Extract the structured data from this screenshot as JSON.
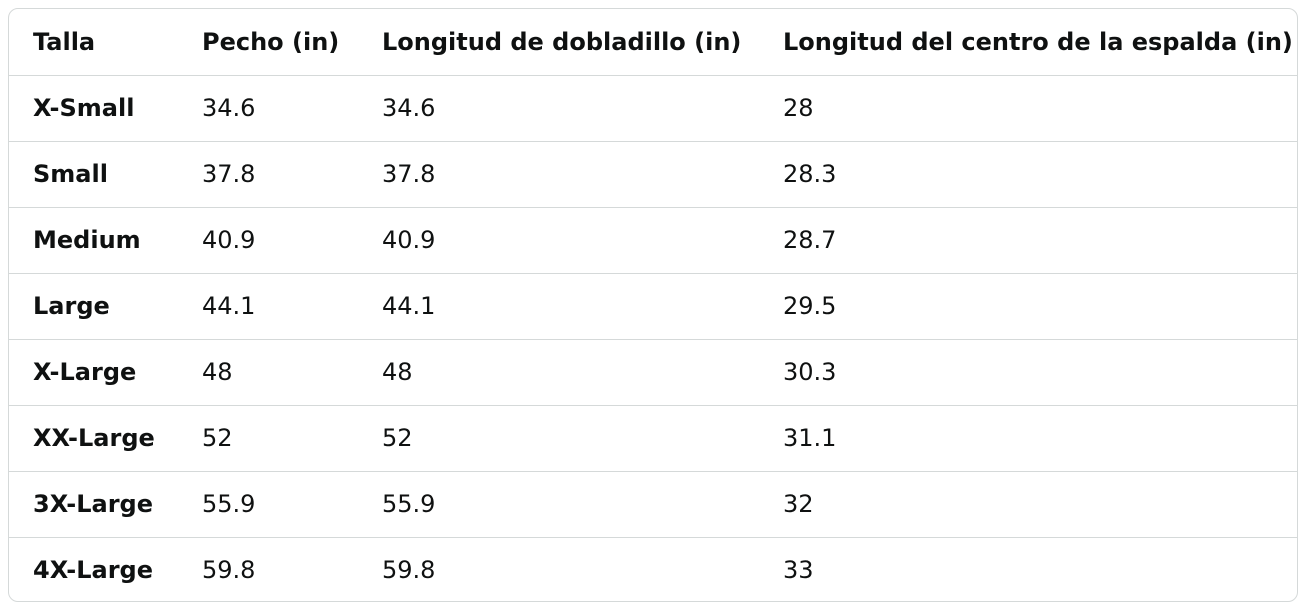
{
  "table": {
    "header": [
      "Talla",
      "Pecho (in)",
      "Longitud de dobladillo (in)",
      "Longitud del centro de la espalda (in)"
    ],
    "rows": [
      [
        "X-Small",
        "34.6",
        "34.6",
        "28"
      ],
      [
        "Small",
        "37.8",
        "37.8",
        "28.3"
      ],
      [
        "Medium",
        "40.9",
        "40.9",
        "28.7"
      ],
      [
        "Large",
        "44.1",
        "44.1",
        "29.5"
      ],
      [
        "X-Large",
        "48",
        "48",
        "30.3"
      ],
      [
        "XX-Large",
        "52",
        "52",
        "31.1"
      ],
      [
        "3X-Large",
        "55.9",
        "55.9",
        "32"
      ],
      [
        "4X-Large",
        "59.8",
        "59.8",
        "33"
      ]
    ]
  }
}
